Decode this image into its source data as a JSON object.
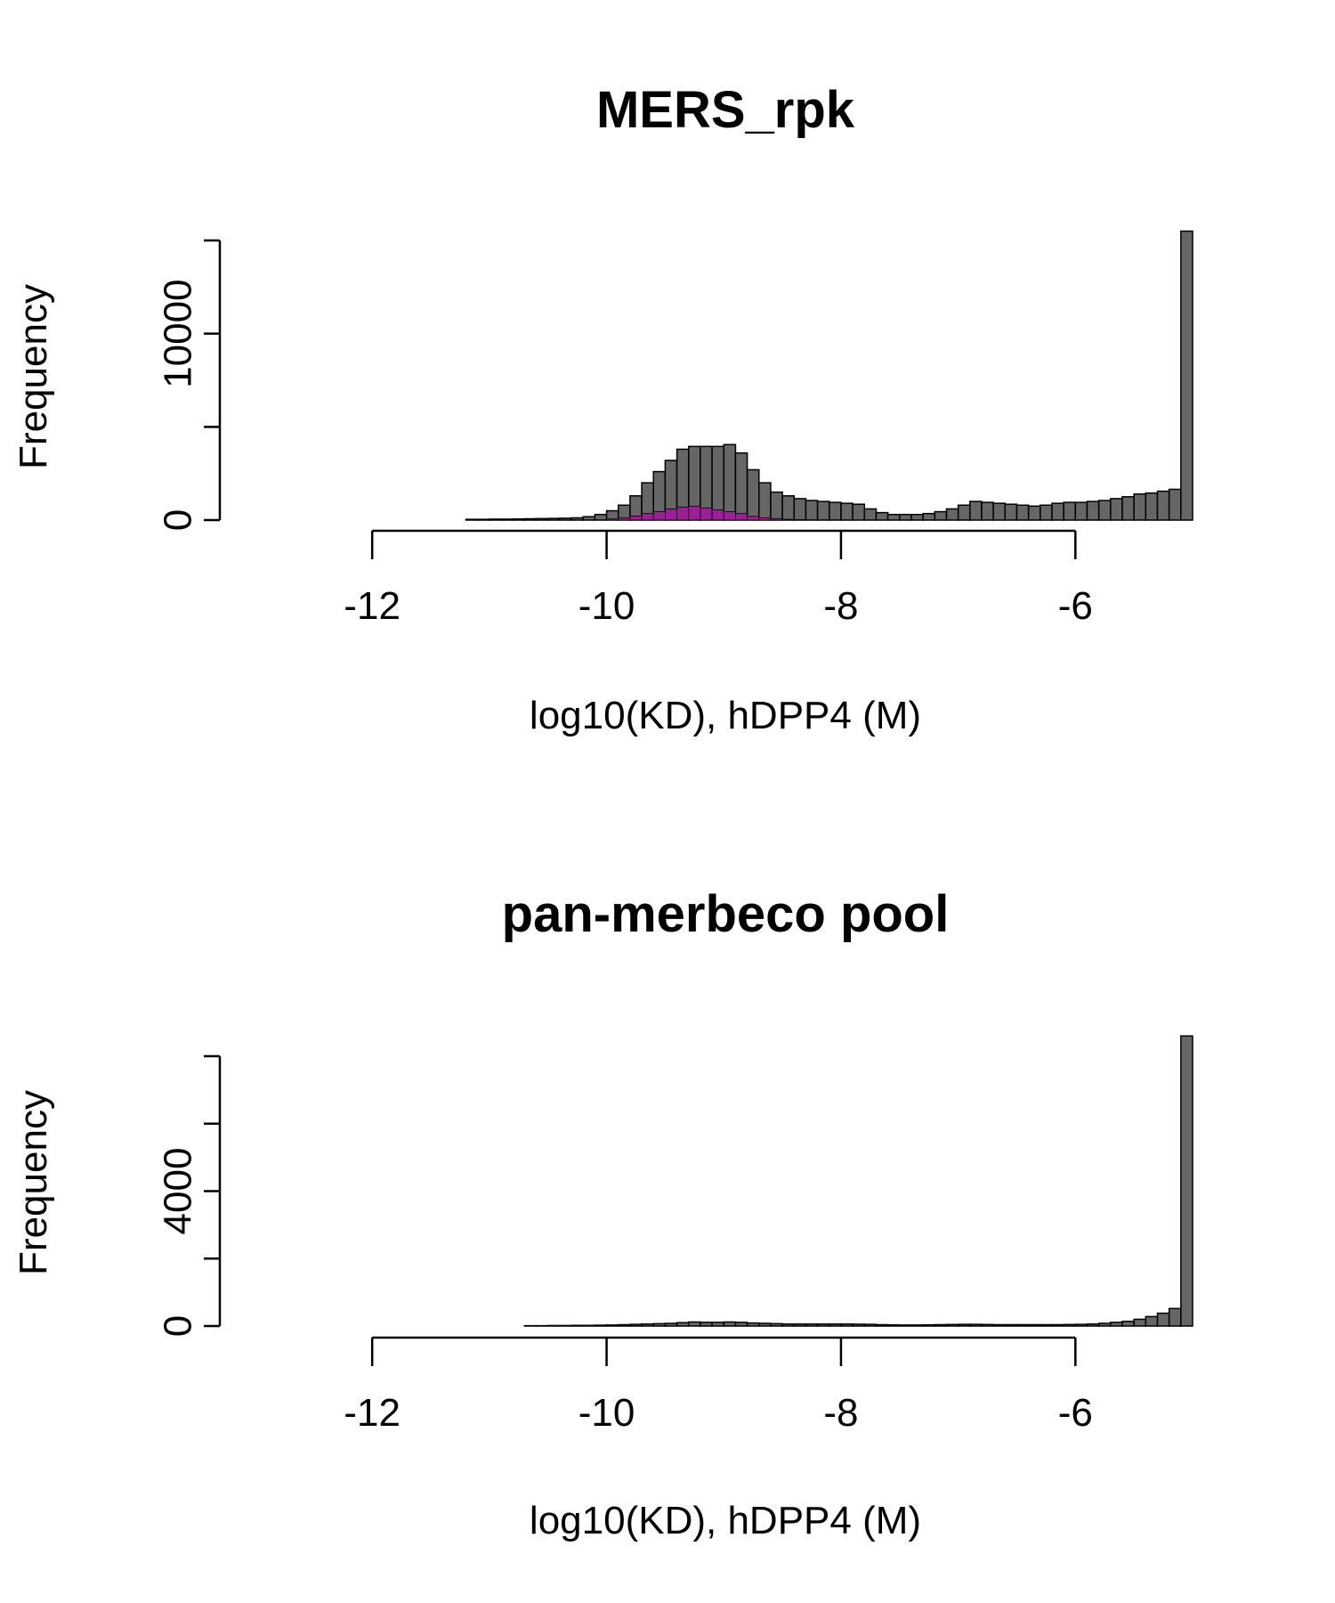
{
  "chart_data": [
    {
      "type": "bar",
      "title": "MERS_rpk",
      "xlabel": "log10(KD), hDPP4 (M)",
      "ylabel": "Frequency",
      "xlim": [
        -13.3,
        -5
      ],
      "ylim": [
        0,
        15000
      ],
      "x_ticks": [
        -12,
        -10,
        -8,
        -6
      ],
      "x_tick_labels": [
        "-12",
        "-10",
        "-8",
        "-6"
      ],
      "y_ticks": [
        0,
        5000,
        10000,
        15000
      ],
      "y_tick_labels": [
        "0",
        "",
        "10000",
        ""
      ],
      "bin_width": 0.1,
      "bins_start": [
        -11.2,
        -11.1,
        -11.0,
        -10.9,
        -10.8,
        -10.7,
        -10.6,
        -10.5,
        -10.4,
        -10.3,
        -10.2,
        -10.1,
        -10.0,
        -9.9,
        -9.8,
        -9.7,
        -9.6,
        -9.5,
        -9.4,
        -9.3,
        -9.2,
        -9.1,
        -9.0,
        -8.9,
        -8.8,
        -8.7,
        -8.6,
        -8.5,
        -8.4,
        -8.3,
        -8.2,
        -8.1,
        -8.0,
        -7.9,
        -7.8,
        -7.7,
        -7.6,
        -7.5,
        -7.4,
        -7.3,
        -7.2,
        -7.1,
        -7.0,
        -6.9,
        -6.8,
        -6.7,
        -6.6,
        -6.5,
        -6.4,
        -6.3,
        -6.2,
        -6.1,
        -6.0,
        -5.9,
        -5.8,
        -5.7,
        -5.6,
        -5.5,
        -5.4,
        -5.3,
        -5.2,
        -5.1
      ],
      "series": [
        {
          "name": "all",
          "color": "#666666",
          "values": [
            40,
            40,
            50,
            50,
            60,
            70,
            80,
            90,
            100,
            120,
            180,
            300,
            500,
            800,
            1300,
            2000,
            2600,
            3200,
            3800,
            3950,
            3950,
            3950,
            4050,
            3600,
            2700,
            2000,
            1500,
            1300,
            1150,
            1050,
            1000,
            950,
            900,
            850,
            600,
            400,
            300,
            300,
            300,
            350,
            450,
            600,
            800,
            1000,
            950,
            900,
            850,
            800,
            750,
            800,
            900,
            950,
            950,
            1000,
            1050,
            1150,
            1250,
            1400,
            1450,
            1550,
            1650,
            15500
          ]
        },
        {
          "name": "highlighted",
          "color": "#9b1f96",
          "values": [
            0,
            0,
            0,
            0,
            0,
            0,
            0,
            0,
            0,
            0,
            0,
            0,
            60,
            120,
            220,
            350,
            450,
            600,
            700,
            750,
            650,
            550,
            450,
            350,
            200,
            120,
            80,
            40,
            20,
            10,
            0,
            0,
            0,
            0,
            0,
            0,
            0,
            0,
            0,
            0,
            0,
            0,
            0,
            0,
            0,
            0,
            0,
            0,
            0,
            0,
            0,
            0,
            0,
            0,
            0,
            0,
            0,
            0,
            0,
            0,
            0,
            0
          ]
        }
      ]
    },
    {
      "type": "bar",
      "title": "pan-merbeco pool",
      "xlabel": "log10(KD), hDPP4 (M)",
      "ylabel": "Frequency",
      "xlim": [
        -13.3,
        -5
      ],
      "ylim": [
        0,
        8000
      ],
      "x_ticks": [
        -12,
        -10,
        -8,
        -6
      ],
      "x_tick_labels": [
        "-12",
        "-10",
        "-8",
        "-6"
      ],
      "y_ticks": [
        0,
        2000,
        4000,
        6000,
        8000
      ],
      "y_tick_labels": [
        "0",
        "",
        "4000",
        "",
        ""
      ],
      "bin_width": 0.1,
      "bins_start": [
        -10.7,
        -10.6,
        -10.5,
        -10.4,
        -10.3,
        -10.2,
        -10.1,
        -10.0,
        -9.9,
        -9.8,
        -9.7,
        -9.6,
        -9.5,
        -9.4,
        -9.3,
        -9.2,
        -9.1,
        -9.0,
        -8.9,
        -8.8,
        -8.7,
        -8.6,
        -8.5,
        -8.4,
        -8.3,
        -8.2,
        -8.1,
        -8.0,
        -7.9,
        -7.8,
        -7.7,
        -7.6,
        -7.5,
        -7.4,
        -7.3,
        -7.2,
        -7.1,
        -7.0,
        -6.9,
        -6.8,
        -6.7,
        -6.6,
        -6.5,
        -6.4,
        -6.3,
        -6.2,
        -6.1,
        -6.0,
        -5.9,
        -5.8,
        -5.7,
        -5.6,
        -5.5,
        -5.4,
        -5.3,
        -5.2,
        -5.1
      ],
      "series": [
        {
          "name": "all",
          "color": "#666666",
          "values": [
            10,
            10,
            15,
            15,
            20,
            20,
            25,
            30,
            40,
            50,
            60,
            70,
            80,
            100,
            120,
            110,
            110,
            120,
            110,
            90,
            80,
            70,
            60,
            60,
            60,
            60,
            60,
            60,
            55,
            50,
            40,
            35,
            30,
            30,
            35,
            40,
            45,
            50,
            50,
            45,
            40,
            40,
            40,
            40,
            40,
            40,
            45,
            50,
            60,
            80,
            110,
            140,
            200,
            280,
            380,
            520,
            8600
          ]
        }
      ]
    }
  ]
}
